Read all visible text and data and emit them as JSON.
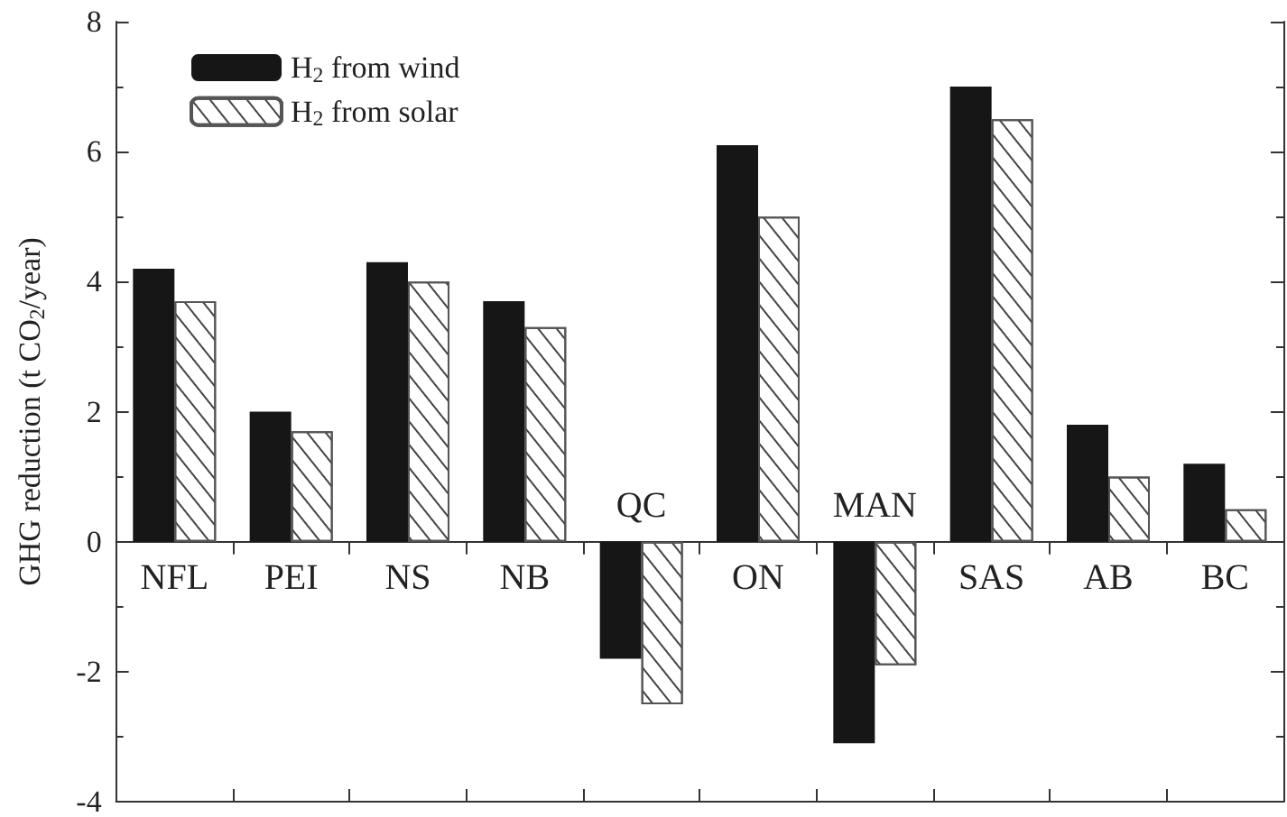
{
  "chart_data": {
    "type": "bar",
    "ylabel": "GHG reduction (t CO$_{2}$/year)",
    "categories": [
      "NFL",
      "PEI",
      "NS",
      "NB",
      "QC",
      "ON",
      "MAN",
      "SAS",
      "AB",
      "BC"
    ],
    "series": [
      {
        "name": "H$_{2}$ from wind",
        "color": "#161616",
        "values": [
          4.2,
          2.0,
          4.3,
          3.7,
          -1.8,
          6.1,
          -3.1,
          7.0,
          1.8,
          1.2
        ]
      },
      {
        "name": "H$_{2}$ from solar",
        "color": "#ffffff",
        "values": [
          3.7,
          1.7,
          4.0,
          3.3,
          -2.5,
          5.0,
          -1.9,
          6.5,
          1.0,
          0.5
        ]
      }
    ],
    "ylim": [
      -4,
      8
    ],
    "yticks": [
      -4,
      -2,
      0,
      2,
      4,
      6,
      8
    ],
    "grid": false,
    "legend": "top left"
  }
}
